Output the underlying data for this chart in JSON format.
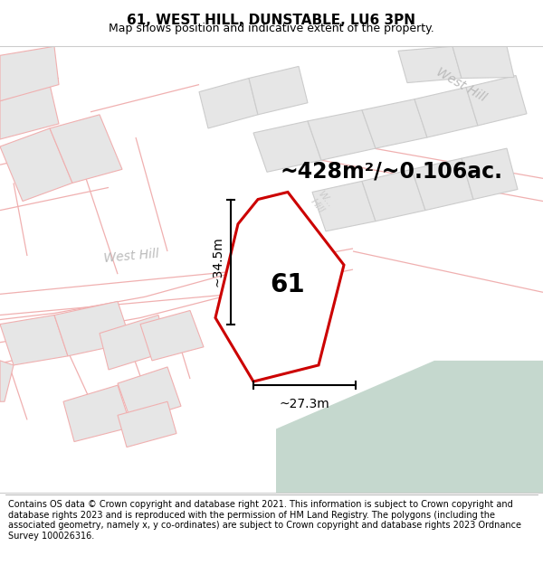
{
  "title": "61, WEST HILL, DUNSTABLE, LU6 3PN",
  "subtitle": "Map shows position and indicative extent of the property.",
  "footer": "Contains OS data © Crown copyright and database right 2021. This information is subject to Crown copyright and database rights 2023 and is reproduced with the permission of HM Land Registry. The polygons (including the associated geometry, namely x, y co-ordinates) are subject to Crown copyright and database rights 2023 Ordnance Survey 100026316.",
  "area_text": "~428m²/~0.106ac.",
  "label_61": "61",
  "dim_vertical": "~34.5m",
  "dim_horizontal": "~27.3m",
  "road_label_left": "West Hill",
  "road_label_right": "West Hill",
  "bg_map_color": "#f5f5f5",
  "plot_fill": "#e8e8e8",
  "plot_stroke": "#cc0000",
  "teal_color": "#c5d8ce",
  "road_color": "#ffffff",
  "street_pink": "#f0b0b0",
  "street_gray": "#cccccc",
  "bldg_fill": "#e6e6e6",
  "bldg_edge_pink": "#f0b0b0",
  "bldg_edge_gray": "#cccccc",
  "title_fontsize": 11,
  "subtitle_fontsize": 9,
  "footer_fontsize": 7.0,
  "area_fontsize": 17,
  "label_fontsize": 20,
  "road_fontsize": 10,
  "dim_fontsize": 10
}
